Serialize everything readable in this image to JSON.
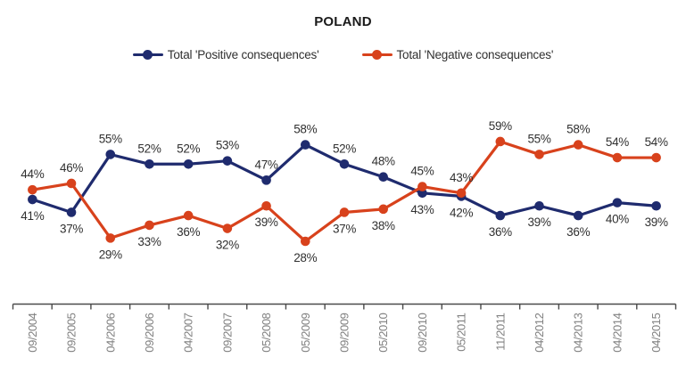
{
  "title": "POLAND",
  "chart_data": {
    "type": "line",
    "title": "POLAND",
    "categories": [
      "09/2004",
      "09/2005",
      "04/2006",
      "09/2006",
      "04/2007",
      "09/2007",
      "05/2008",
      "05/2009",
      "09/2009",
      "05/2010",
      "09/2010",
      "05/2011",
      "11/2011",
      "04/2012",
      "04/2013",
      "04/2014",
      "04/2015"
    ],
    "series": [
      {
        "name": "Total 'Positive consequences'",
        "color": "#1F2B6E",
        "values": [
          41,
          37,
          55,
          52,
          52,
          53,
          47,
          58,
          52,
          48,
          43,
          42,
          36,
          39,
          36,
          40,
          39
        ]
      },
      {
        "name": "Total 'Negative consequences'",
        "color": "#D8421C",
        "values": [
          44,
          46,
          29,
          33,
          36,
          32,
          39,
          28,
          37,
          38,
          45,
          43,
          59,
          55,
          58,
          54,
          54
        ]
      }
    ],
    "value_suffix": "%",
    "ylim": [
      20,
      65
    ],
    "grid": false,
    "legend_position": "top",
    "data_labels": true
  },
  "colors": {
    "axis_line": "#4a4a4a",
    "axis_labels": "#808080",
    "value_labels": "#303030",
    "title": "#1a1a1a",
    "legend_text": "#303030",
    "background": "#ffffff"
  }
}
